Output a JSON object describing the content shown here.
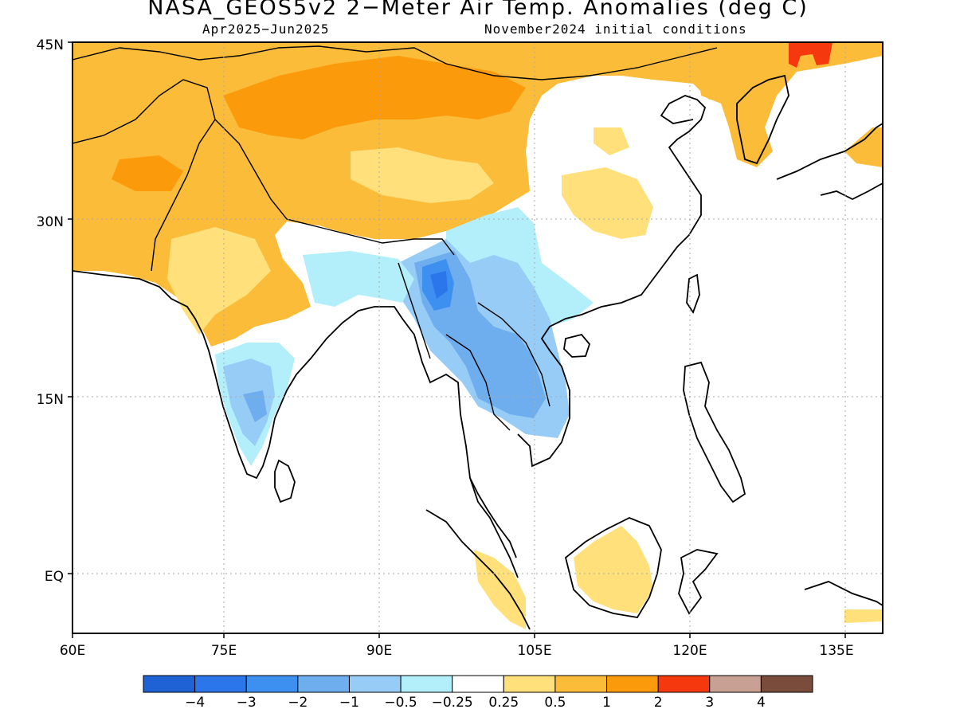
{
  "title": "NASA_GEOS5v2 2−Meter Air Temp. Anomalies (deg C)",
  "subtitle_left": "Apr2025−Jun2025",
  "subtitle_right": "November2024 initial conditions",
  "axes": {
    "lon_ticks": [
      "60E",
      "75E",
      "90E",
      "105E",
      "120E",
      "135E"
    ],
    "lat_ticks": [
      "45N",
      "30N",
      "15N",
      "EQ"
    ],
    "lon_range": [
      60,
      138
    ],
    "lat_range": [
      -5,
      45
    ],
    "grid": "dotted"
  },
  "colorbar": {
    "labels": [
      "−4",
      "−3",
      "−2",
      "−1",
      "−0.5",
      "−0.25",
      "0.25",
      "0.5",
      "1",
      "2",
      "3",
      "4"
    ],
    "colors": [
      "#1f62d6",
      "#2a76ea",
      "#3d90f0",
      "#6faeee",
      "#96ccf5",
      "#b2effa",
      "#ffffff",
      "#ffe07a",
      "#fbbc3a",
      "#fb9a0a",
      "#f5380d",
      "#c8a094",
      "#7a4c3c"
    ]
  },
  "chart_data": {
    "type": "heatmap",
    "title": "NASA_GEOS5v2 2−Meter Air Temp. Anomalies (deg C)",
    "period": "Apr2025−Jun2025",
    "initial_conditions": "November2024",
    "units": "deg C",
    "regions": [
      {
        "area": "Northern Tibet / Mongolia (35–45N, 75–105E)",
        "anomaly_range": [
          0.5,
          2
        ]
      },
      {
        "area": "Northwest Pakistan / Afghanistan (25–45N, 60–75E)",
        "anomaly_range": [
          0.5,
          1
        ]
      },
      {
        "area": "Central north China (30–40N, 105–120E)",
        "anomaly_range": [
          0.25,
          0.5
        ]
      },
      {
        "area": "Northeast China / Korea / Japan (35–45N, 120–138E)",
        "anomaly_range": [
          1,
          3
        ]
      },
      {
        "area": "Myanmar / Yunnan (18–28N, 93–100E)",
        "anomaly_range": [
          -3,
          -1
        ]
      },
      {
        "area": "Thailand / Laos / Cambodia (12–20N, 98–107E)",
        "anomaly_range": [
          -2,
          -1
        ]
      },
      {
        "area": "South China (20–30N, 100–112E)",
        "anomaly_range": [
          -1,
          -0.25
        ]
      },
      {
        "area": "Southern India (10–20N, 74–80E)",
        "anomaly_range": [
          -2,
          -0.25
        ]
      },
      {
        "area": "Borneo (-3–5N, 109–118E)",
        "anomaly_range": [
          0.25,
          0.5
        ]
      },
      {
        "area": "Oceans",
        "anomaly_range": [
          -0.25,
          0.25
        ]
      }
    ]
  }
}
